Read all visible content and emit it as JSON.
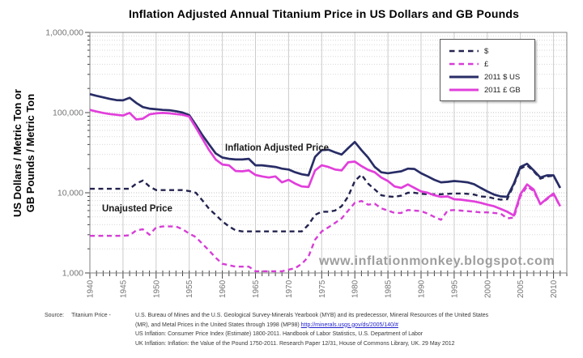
{
  "title": "Inflation Adjusted Annual Titanium Price in US Dollars and GB Pounds",
  "y_axis_label_line1": "US Dollars / Metric Ton or",
  "y_axis_label_line2": "GB Pounds / Metric Ton",
  "annotations": {
    "adjusted": "Inflation Adjusted Price",
    "unadjusted": "Unajusted Price"
  },
  "watermark": "www.inflationmonkey.blogspot.com",
  "source": {
    "label_source": "Source:",
    "label_item": "Titanium Price -",
    "line1": "U.S. Bureau of Mines and the U.S. Geological Survey-Minerals Yearbook (MYB) and its predecessor, Mineral Resources of the United States",
    "line2_text": "(MR), and Metal Prices in the United States through 1998 (MP98) ",
    "line2_link": "http://minerals.usgs.gov/ds/2005/140/#",
    "line3": "US Inflation:  Consumer Price Index (Estimate) 1800-2011. Handbook of Labor Statistics, U.S. Department of Labor",
    "line4": "UK Inflation:  Inflation: the Value of the Pound 1750-2011. Research Paper  12/31, House of Commons Library, UK. 29 May 2012"
  },
  "chart_data": {
    "type": "line",
    "yscale": "log",
    "ylim": [
      1000,
      1000000
    ],
    "xlim": [
      1940,
      2012
    ],
    "grid": true,
    "legend_position": "top-right",
    "x_ticks": [
      1940,
      1945,
      1950,
      1955,
      1960,
      1965,
      1970,
      1975,
      1980,
      1985,
      1990,
      1995,
      2000,
      2005,
      2010
    ],
    "y_ticks": [
      {
        "value": 1000000,
        "label": "1,000,000"
      },
      {
        "value": 100000,
        "label": "100,000"
      },
      {
        "value": 10000,
        "label": "10,000"
      },
      {
        "value": 1000,
        "label": "1,000"
      }
    ],
    "x": [
      1940,
      1941,
      1942,
      1943,
      1944,
      1945,
      1946,
      1947,
      1948,
      1949,
      1950,
      1951,
      1952,
      1953,
      1954,
      1955,
      1956,
      1957,
      1958,
      1959,
      1960,
      1961,
      1962,
      1963,
      1964,
      1965,
      1966,
      1967,
      1968,
      1969,
      1970,
      1971,
      1972,
      1973,
      1974,
      1975,
      1976,
      1977,
      1978,
      1979,
      1980,
      1981,
      1982,
      1983,
      1984,
      1985,
      1986,
      1987,
      1988,
      1989,
      1990,
      1991,
      1992,
      1993,
      1994,
      1995,
      1996,
      1997,
      1998,
      1999,
      2000,
      2001,
      2002,
      2003,
      2004,
      2005,
      2006,
      2007,
      2008,
      2009,
      2010,
      2011
    ],
    "series": [
      {
        "name": "$",
        "dashed": true,
        "color": "#23234F",
        "values": [
          11200,
          11200,
          11200,
          11200,
          11200,
          11200,
          11200,
          13000,
          14200,
          12000,
          10800,
          10800,
          10800,
          10800,
          10800,
          10500,
          10000,
          8000,
          6300,
          5300,
          4400,
          3800,
          3400,
          3300,
          3300,
          3300,
          3300,
          3300,
          3300,
          3300,
          3300,
          3300,
          3300,
          4000,
          5300,
          5800,
          5800,
          6000,
          6800,
          9000,
          14000,
          16800,
          13000,
          11000,
          9300,
          9000,
          8900,
          9200,
          10000,
          10000,
          9700,
          9600,
          9600,
          9600,
          9700,
          9800,
          9800,
          9700,
          9500,
          9000,
          8900,
          8500,
          8200,
          8300,
          12500,
          20000,
          22000,
          18500,
          15000,
          16000,
          16300,
          11500
        ]
      },
      {
        "name": "£",
        "dashed": true,
        "color": "#D63ED6",
        "values": [
          2900,
          2900,
          2900,
          2900,
          2900,
          2900,
          2950,
          3400,
          3500,
          3000,
          3700,
          3800,
          3800,
          3800,
          3500,
          3100,
          2800,
          2300,
          1900,
          1550,
          1300,
          1250,
          1200,
          1200,
          1200,
          1050,
          1050,
          1050,
          1050,
          1050,
          1100,
          1150,
          1300,
          1600,
          2600,
          3300,
          3700,
          4200,
          4800,
          6000,
          7500,
          7900,
          7100,
          7300,
          6400,
          6000,
          5600,
          5600,
          6100,
          6000,
          5900,
          5500,
          5000,
          4600,
          6000,
          6100,
          6000,
          5900,
          5800,
          5700,
          5700,
          5600,
          5500,
          4800,
          4900,
          9000,
          12000,
          10500,
          7200,
          8300,
          9500,
          6800
        ]
      },
      {
        "name": "2011 $ US",
        "dashed": false,
        "color": "#282D66",
        "values": [
          170000,
          162000,
          155000,
          148000,
          143000,
          142000,
          153000,
          132000,
          117000,
          112000,
          110000,
          108000,
          107000,
          104000,
          100000,
          93000,
          70000,
          52000,
          40000,
          31000,
          27500,
          26500,
          26000,
          26000,
          26500,
          22000,
          22000,
          21500,
          21000,
          20000,
          19500,
          18000,
          17000,
          16500,
          28000,
          34000,
          34500,
          32000,
          30000,
          36000,
          43000,
          34000,
          27500,
          21000,
          18000,
          17500,
          18000,
          18500,
          20000,
          19800,
          17500,
          16000,
          14500,
          13500,
          13700,
          14000,
          13800,
          13500,
          12800,
          11500,
          10400,
          9500,
          9000,
          8900,
          13000,
          21000,
          23000,
          19000,
          15500,
          16500,
          16500,
          11500
        ]
      },
      {
        "name": "2011 £ GB",
        "dashed": false,
        "color": "#E13FDB",
        "values": [
          108000,
          103000,
          99000,
          96000,
          94000,
          92000,
          99000,
          82000,
          84000,
          95000,
          98000,
          99000,
          98000,
          96000,
          94000,
          89000,
          65000,
          47000,
          34000,
          26000,
          22500,
          22000,
          18700,
          18500,
          19000,
          16700,
          16000,
          15500,
          16000,
          13500,
          14500,
          13000,
          12000,
          11800,
          19000,
          22000,
          21000,
          19500,
          19000,
          24000,
          24500,
          21500,
          19300,
          18000,
          15500,
          14000,
          12000,
          11500,
          12700,
          11500,
          10400,
          10000,
          9300,
          8900,
          9000,
          8300,
          8200,
          8000,
          7800,
          7500,
          7100,
          6800,
          6300,
          5800,
          5200,
          9600,
          12700,
          11000,
          7200,
          8500,
          9800,
          6800
        ]
      }
    ]
  }
}
